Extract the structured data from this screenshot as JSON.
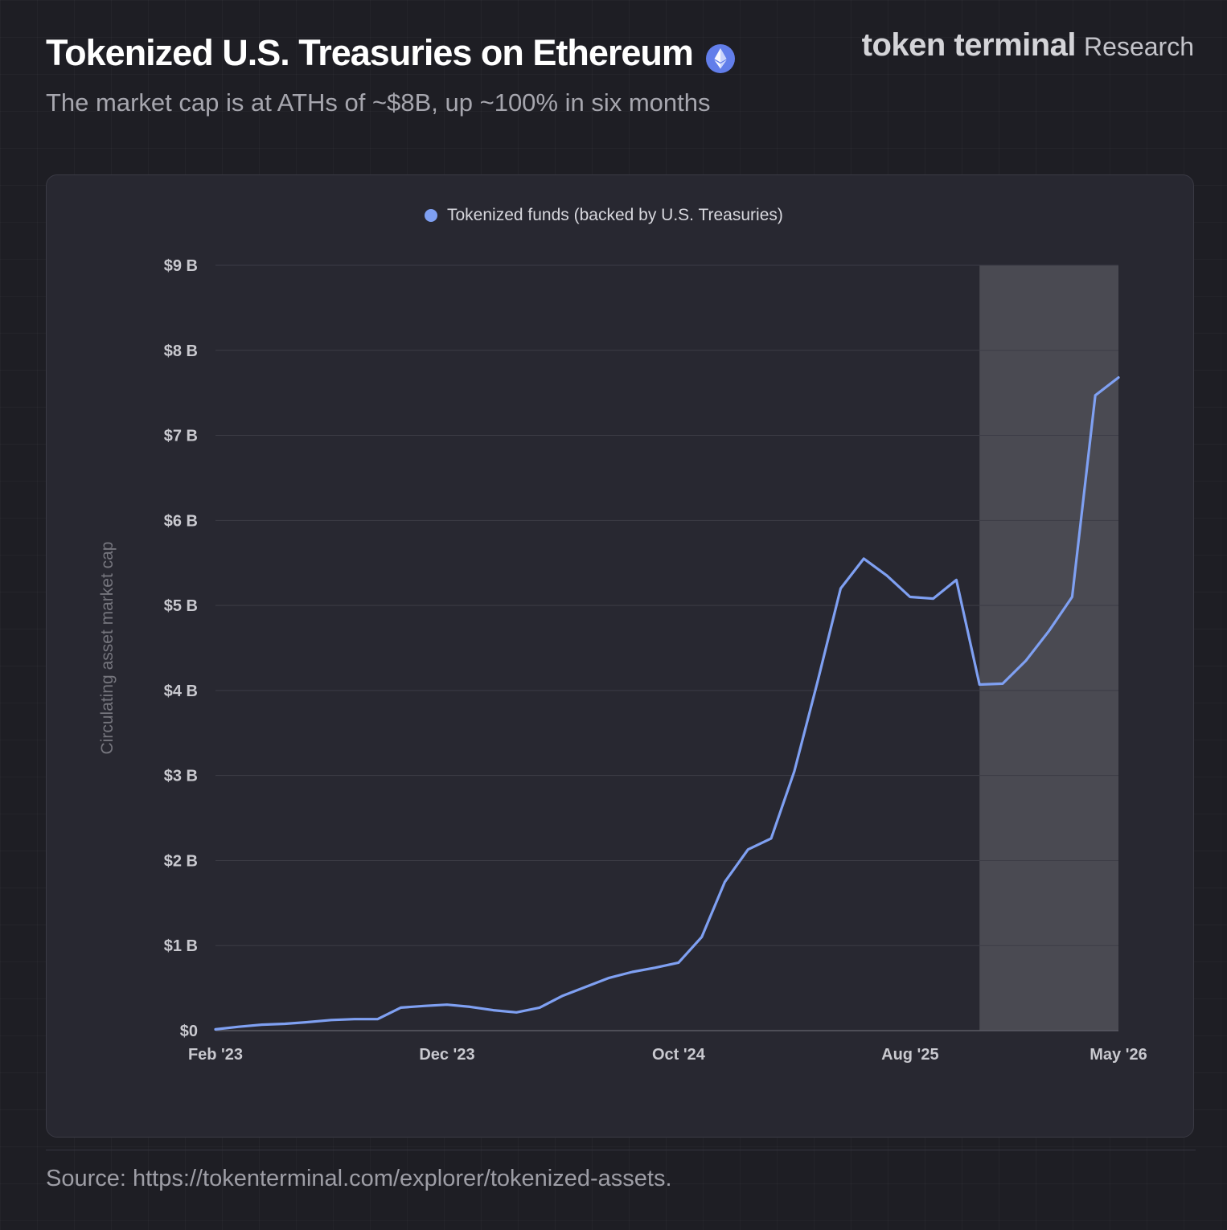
{
  "header": {
    "title": "Tokenized U.S. Treasuries on Ethereum",
    "subtitle": "The market cap is at ATHs of ~$8B, up ~100% in six months",
    "badge_icon": "ethereum-icon",
    "brand_name": "token terminal",
    "brand_suffix": "Research"
  },
  "footer": {
    "source": "Source: https://tokenterminal.com/explorer/tokenized-assets."
  },
  "colors": {
    "background": "#1e1e24",
    "card": "#282831",
    "series_line": "#7fa0f2",
    "highlight_band": "#4a4a52",
    "eth_badge": "#627eea"
  },
  "chart_data": {
    "type": "line",
    "ylabel": "Circulating asset market cap",
    "xlabel": "",
    "ylim": [
      0,
      9000000000
    ],
    "y_ticks": [
      {
        "value": 0,
        "label": "$0"
      },
      {
        "value": 1000000000,
        "label": "$1 B"
      },
      {
        "value": 2000000000,
        "label": "$2 B"
      },
      {
        "value": 3000000000,
        "label": "$3 B"
      },
      {
        "value": 4000000000,
        "label": "$4 B"
      },
      {
        "value": 5000000000,
        "label": "$5 B"
      },
      {
        "value": 6000000000,
        "label": "$6 B"
      },
      {
        "value": 7000000000,
        "label": "$7 B"
      },
      {
        "value": 8000000000,
        "label": "$8 B"
      },
      {
        "value": 9000000000,
        "label": "$9 B"
      }
    ],
    "x_ticks": [
      {
        "date": "2023-02",
        "label": "Feb '23"
      },
      {
        "date": "2023-12",
        "label": "Dec '23"
      },
      {
        "date": "2024-10",
        "label": "Oct '24"
      },
      {
        "date": "2025-08",
        "label": "Aug '25"
      },
      {
        "date": "2026-05",
        "label": "May '26"
      }
    ],
    "x_range": [
      "2023-02",
      "2026-05"
    ],
    "grid": "horizontal",
    "legend_position": "top-center",
    "highlight_range": [
      "2025-11",
      "2026-05"
    ],
    "series": [
      {
        "name": "Tokenized funds (backed by U.S. Treasuries)",
        "color": "#7fa0f2",
        "points": [
          {
            "x": "2023-02",
            "y": 15000000
          },
          {
            "x": "2023-03",
            "y": 45000000
          },
          {
            "x": "2023-04",
            "y": 70000000
          },
          {
            "x": "2023-05",
            "y": 80000000
          },
          {
            "x": "2023-06",
            "y": 100000000
          },
          {
            "x": "2023-07",
            "y": 125000000
          },
          {
            "x": "2023-08",
            "y": 135000000
          },
          {
            "x": "2023-09",
            "y": 135000000
          },
          {
            "x": "2023-10",
            "y": 270000000
          },
          {
            "x": "2023-11",
            "y": 290000000
          },
          {
            "x": "2023-12",
            "y": 305000000
          },
          {
            "x": "2024-01",
            "y": 280000000
          },
          {
            "x": "2024-02",
            "y": 240000000
          },
          {
            "x": "2024-03",
            "y": 215000000
          },
          {
            "x": "2024-04",
            "y": 270000000
          },
          {
            "x": "2024-05",
            "y": 410000000
          },
          {
            "x": "2024-06",
            "y": 515000000
          },
          {
            "x": "2024-07",
            "y": 620000000
          },
          {
            "x": "2024-08",
            "y": 690000000
          },
          {
            "x": "2024-09",
            "y": 740000000
          },
          {
            "x": "2024-10",
            "y": 800000000
          },
          {
            "x": "2024-11",
            "y": 1100000000
          },
          {
            "x": "2024-12",
            "y": 1750000000
          },
          {
            "x": "2025-01",
            "y": 2130000000
          },
          {
            "x": "2025-02",
            "y": 2260000000
          },
          {
            "x": "2025-03",
            "y": 3050000000
          },
          {
            "x": "2025-04",
            "y": 4100000000
          },
          {
            "x": "2025-05",
            "y": 5200000000
          },
          {
            "x": "2025-06",
            "y": 5550000000
          },
          {
            "x": "2025-07",
            "y": 5350000000
          },
          {
            "x": "2025-08",
            "y": 5100000000
          },
          {
            "x": "2025-09",
            "y": 5080000000
          },
          {
            "x": "2025-10",
            "y": 5300000000
          },
          {
            "x": "2025-11",
            "y": 4070000000
          },
          {
            "x": "2025-12",
            "y": 4080000000
          },
          {
            "x": "2026-01",
            "y": 4350000000
          },
          {
            "x": "2026-02",
            "y": 4700000000
          },
          {
            "x": "2026-03",
            "y": 5100000000
          },
          {
            "x": "2026-04",
            "y": 7470000000
          },
          {
            "x": "2026-05",
            "y": 7680000000
          }
        ]
      }
    ]
  }
}
